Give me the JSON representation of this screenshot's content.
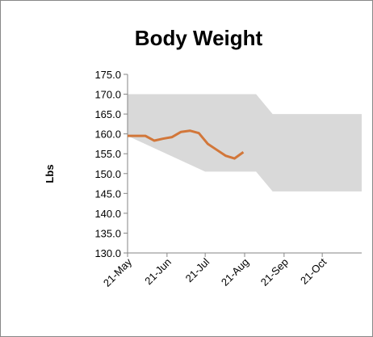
{
  "chart_data": {
    "type": "line",
    "title": "Body Weight",
    "ylabel": "Lbs",
    "ylim": [
      130,
      175
    ],
    "yticks": [
      {
        "value": 130,
        "label": "130.0"
      },
      {
        "value": 135,
        "label": "135.0"
      },
      {
        "value": 140,
        "label": "140.0"
      },
      {
        "value": 145,
        "label": "145.0"
      },
      {
        "value": 150,
        "label": "150.0"
      },
      {
        "value": 155,
        "label": "155.0"
      },
      {
        "value": 160,
        "label": "160.0"
      },
      {
        "value": 165,
        "label": "165.0"
      },
      {
        "value": 170,
        "label": "170.0"
      },
      {
        "value": 175,
        "label": "175.0"
      }
    ],
    "xlim": [
      141,
      325
    ],
    "xticks": [
      {
        "value": 141,
        "label": "21-May"
      },
      {
        "value": 172,
        "label": "21-Jun"
      },
      {
        "value": 202,
        "label": "21-Jul"
      },
      {
        "value": 233,
        "label": "21-Aug"
      },
      {
        "value": 264,
        "label": "21-Sep"
      },
      {
        "value": 294,
        "label": "21-Oct"
      }
    ],
    "band": {
      "color": "#d9d9d9",
      "x": [
        141,
        202,
        242,
        255,
        325
      ],
      "upper": [
        170,
        170,
        170,
        165,
        165
      ],
      "lower": [
        159.5,
        150.5,
        150.5,
        145.5,
        145.5
      ]
    },
    "series": [
      {
        "color": "#d2773a",
        "x": [
          141,
          148,
          155,
          162,
          169,
          176,
          183,
          190,
          197,
          204,
          211,
          218,
          225,
          232
        ],
        "values": [
          159.5,
          159.5,
          159.5,
          158.3,
          158.8,
          159.2,
          160.5,
          160.8,
          160.2,
          157.5,
          156,
          154.5,
          153.8,
          155.4
        ]
      }
    ]
  }
}
